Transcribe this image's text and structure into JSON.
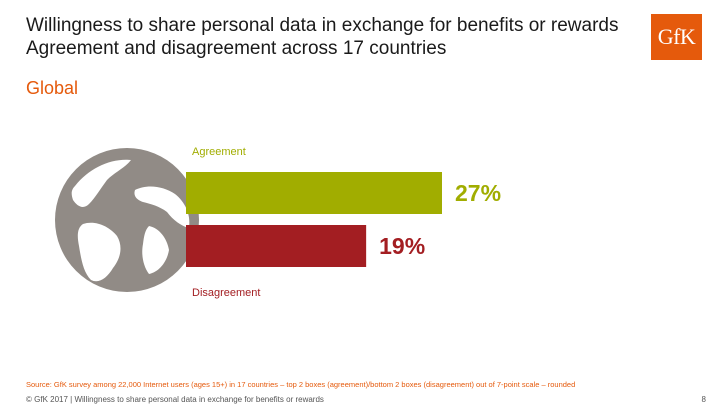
{
  "slide": {
    "title_line1": "Willingness to share personal data in exchange for benefits or rewards",
    "title_line2": "Agreement and disagreement across 17 countries",
    "subtitle": "Global",
    "logo_text": "GfK",
    "source": "Source: GfK survey among 22,000 Internet users (ages 15+) in 17 countries – top 2 boxes (agreement)/bottom 2 boxes (disagreement) out of 7-point scale – rounded",
    "footer": "© GfK 2017 | Willingness to share personal data in exchange for benefits or rewards",
    "page_number": "8",
    "accent_color": "#e55a0c"
  },
  "chart_data": {
    "type": "bar",
    "orientation": "horizontal",
    "categories": [
      "Agreement",
      "Disagreement"
    ],
    "values": [
      27,
      19
    ],
    "value_labels": [
      "27%",
      "19%"
    ],
    "colors": [
      "#a1ad00",
      "#a31e22"
    ],
    "unit": "%",
    "xlim": [
      0,
      27
    ]
  }
}
